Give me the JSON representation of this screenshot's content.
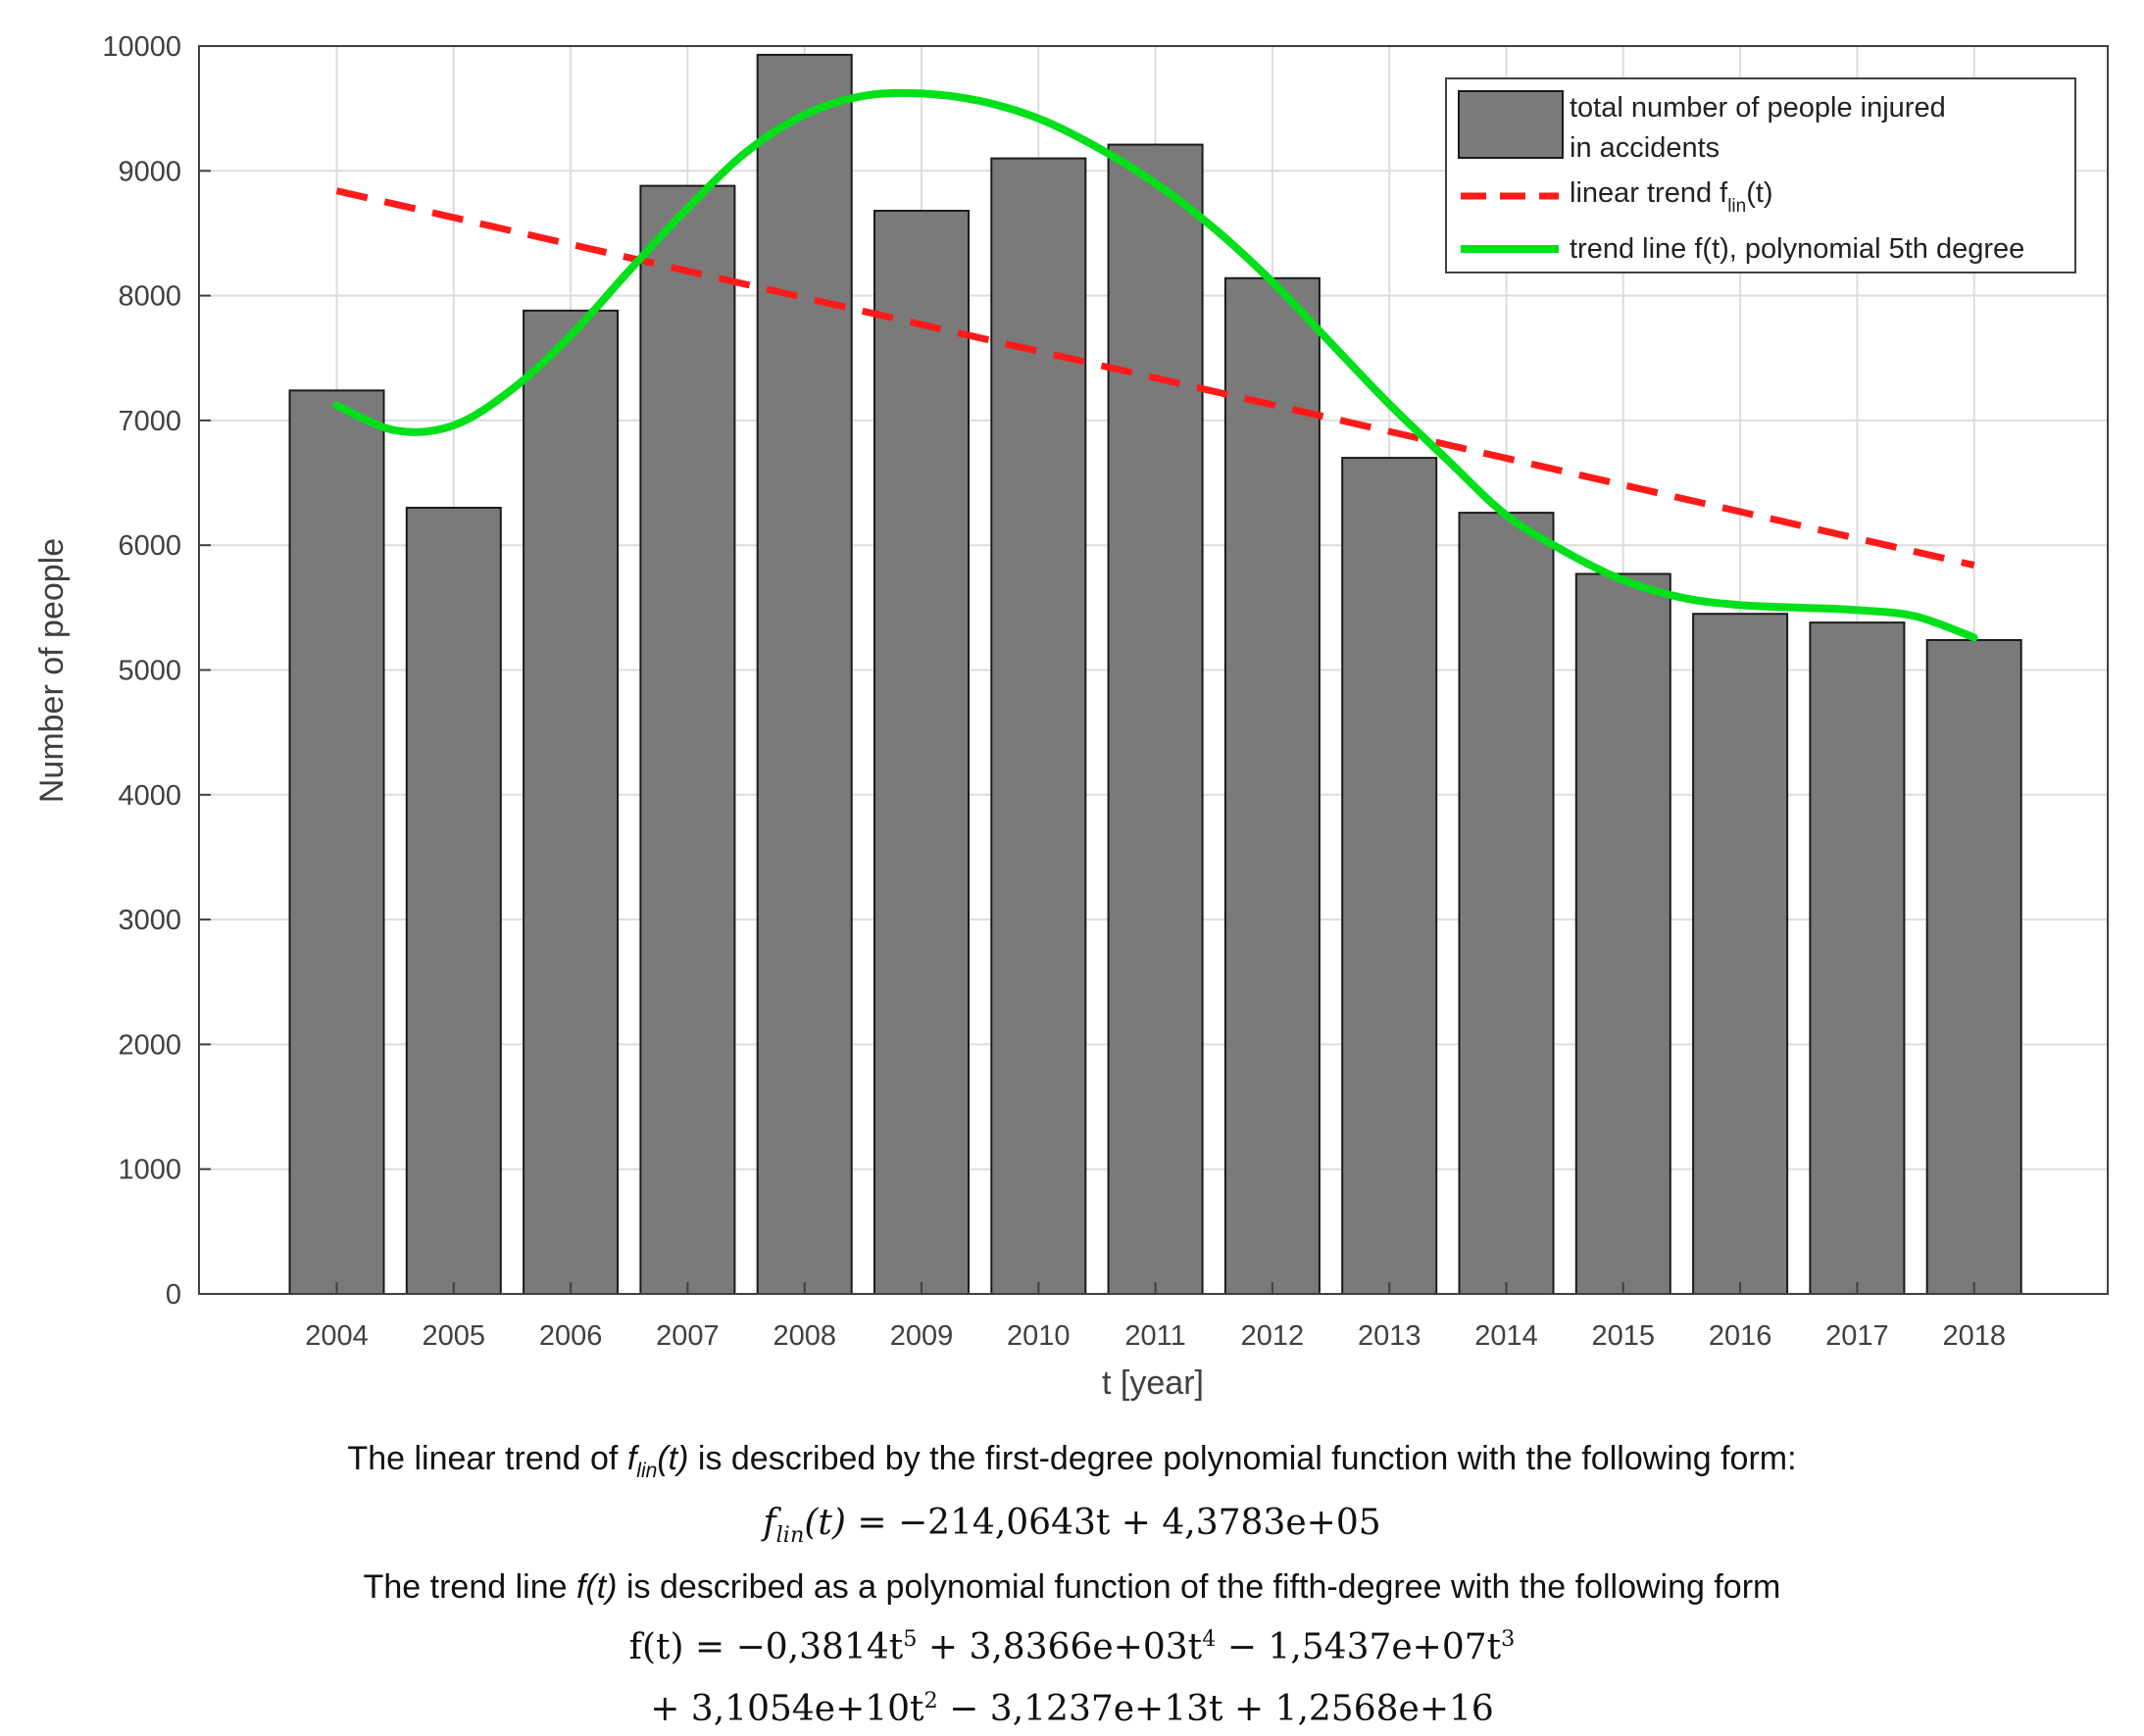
{
  "colors": {
    "bar_fill": "#7a7a7a",
    "bar_stroke": "#1a1a1a",
    "grid": "#dcdcdc",
    "linear": "#ff1a1a",
    "poly": "#00e01a",
    "axis": "#404040"
  },
  "chart_data": {
    "type": "bar",
    "title": "",
    "xlabel": "t [year]",
    "ylabel": "Number of people",
    "ylim": [
      0,
      10000
    ],
    "yticks": [
      0,
      1000,
      2000,
      3000,
      4000,
      5000,
      6000,
      7000,
      8000,
      9000,
      10000
    ],
    "grid": true,
    "legend_position": "top-right",
    "categories": [
      "2004",
      "2005",
      "2006",
      "2007",
      "2008",
      "2009",
      "2010",
      "2011",
      "2012",
      "2013",
      "2014",
      "2015",
      "2016",
      "2017",
      "2018"
    ],
    "series": [
      {
        "name": "total number of people injured in accidents",
        "type": "bar",
        "values": [
          7240,
          6300,
          7880,
          8880,
          9930,
          8680,
          9100,
          9210,
          8140,
          6700,
          6260,
          5770,
          5450,
          5380,
          5240
        ]
      },
      {
        "name": "linear trend",
        "type": "line",
        "style": "dashed",
        "x": [
          2004,
          2018
        ],
        "values": [
          8840,
          5840
        ]
      },
      {
        "name": "trend line f(t), polynomial 5th degree",
        "type": "line",
        "style": "solid",
        "x": [
          2004,
          2004.5,
          2005,
          2005.5,
          2006,
          2006.5,
          2007,
          2007.5,
          2008,
          2008.5,
          2009,
          2009.5,
          2010,
          2010.5,
          2011,
          2011.5,
          2012,
          2012.5,
          2013,
          2013.5,
          2014,
          2014.5,
          2015,
          2015.5,
          2016,
          2016.5,
          2017,
          2017.5,
          2018
        ],
        "values": [
          7120,
          6920,
          6960,
          7250,
          7680,
          8200,
          8700,
          9150,
          9450,
          9600,
          9620,
          9560,
          9420,
          9190,
          8900,
          8540,
          8110,
          7620,
          7130,
          6680,
          6240,
          5950,
          5720,
          5580,
          5520,
          5500,
          5480,
          5430,
          5260
        ]
      }
    ],
    "legend": {
      "bar_line1": "total number of people injured",
      "bar_line2": "in accidents",
      "linear_prefix": "linear trend f",
      "linear_sub": "lin",
      "linear_suffix": "(t)",
      "poly": "trend line f(t), polynomial 5th degree"
    }
  },
  "description": {
    "line1_prefix": "The linear trend of ",
    "line1_func": "f",
    "line1_func_sub": "lin",
    "line1_func_arg": "(t)",
    "line1_suffix": " is described by the first-degree polynomial function with the following form:",
    "formula1_lhs": "f",
    "formula1_lhs_sub": "lin",
    "formula1_lhs_arg": "(t)",
    "formula1_rhs": " = −214,0643t  +  4,3783e+05",
    "line2_prefix": "The trend line ",
    "line2_func": "f(t)",
    "line2_suffix": " is described as a polynomial function of the fifth-degree with the following form",
    "formula2_a": "f(t) = −0,3814t",
    "formula2_a_exp": "5",
    "formula2_b": " + 3,8366e+03t",
    "formula2_b_exp": "4",
    "formula2_c": " − 1,5437e+07t",
    "formula2_c_exp": "3",
    "formula3_a": "+ 3,1054e+10t",
    "formula3_a_exp": "2",
    "formula3_b": " − 3,1237e+13t + 1,2568e+16"
  }
}
